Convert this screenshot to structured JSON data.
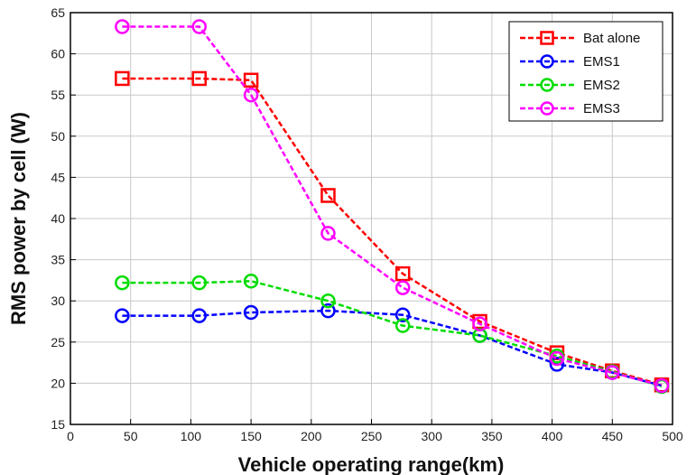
{
  "chart_data": {
    "type": "line",
    "title": "",
    "xlabel": "Vehicle operating range(km)",
    "ylabel": "RMS power by cell (W)",
    "xlim": [
      0,
      500
    ],
    "ylim": [
      15,
      65
    ],
    "xticks": [
      0,
      50,
      100,
      150,
      200,
      250,
      300,
      350,
      400,
      450,
      500
    ],
    "yticks": [
      15,
      20,
      25,
      30,
      35,
      40,
      45,
      50,
      55,
      60,
      65
    ],
    "xtick_labels": [
      "0",
      "50",
      "100",
      "150",
      "200",
      "250",
      "300",
      "350",
      "400",
      "450",
      "500"
    ],
    "ytick_labels": [
      "15",
      "20",
      "25",
      "30",
      "35",
      "40",
      "45",
      "50",
      "55",
      "60",
      "65"
    ],
    "grid": true,
    "legend_position": "top-right",
    "series": [
      {
        "name": "Bat alone",
        "color": "#ff0000",
        "marker": "square",
        "x": [
          43,
          107,
          150,
          214,
          276,
          340,
          404,
          450,
          491
        ],
        "y": [
          57,
          57,
          56.8,
          42.8,
          33.3,
          27.5,
          23.7,
          21.5,
          19.8
        ]
      },
      {
        "name": "EMS1",
        "color": "#0000ff",
        "marker": "circle",
        "x": [
          43,
          107,
          150,
          214,
          276,
          340,
          404,
          450,
          491
        ],
        "y": [
          28.2,
          28.2,
          28.6,
          28.8,
          28.3,
          25.8,
          22.3,
          21.3,
          19.7
        ]
      },
      {
        "name": "EMS2",
        "color": "#00dd00",
        "marker": "circle",
        "x": [
          43,
          107,
          150,
          214,
          276,
          340,
          404,
          450,
          491
        ],
        "y": [
          32.2,
          32.2,
          32.4,
          30.0,
          27.0,
          25.8,
          23.3,
          21.4,
          19.6
        ]
      },
      {
        "name": "EMS3",
        "color": "#ff00ff",
        "marker": "circle",
        "x": [
          43,
          107,
          150,
          214,
          276,
          340,
          404,
          450,
          491
        ],
        "y": [
          63.3,
          63.3,
          55.0,
          38.2,
          31.6,
          27.2,
          23.0,
          21.3,
          19.7
        ]
      }
    ]
  }
}
